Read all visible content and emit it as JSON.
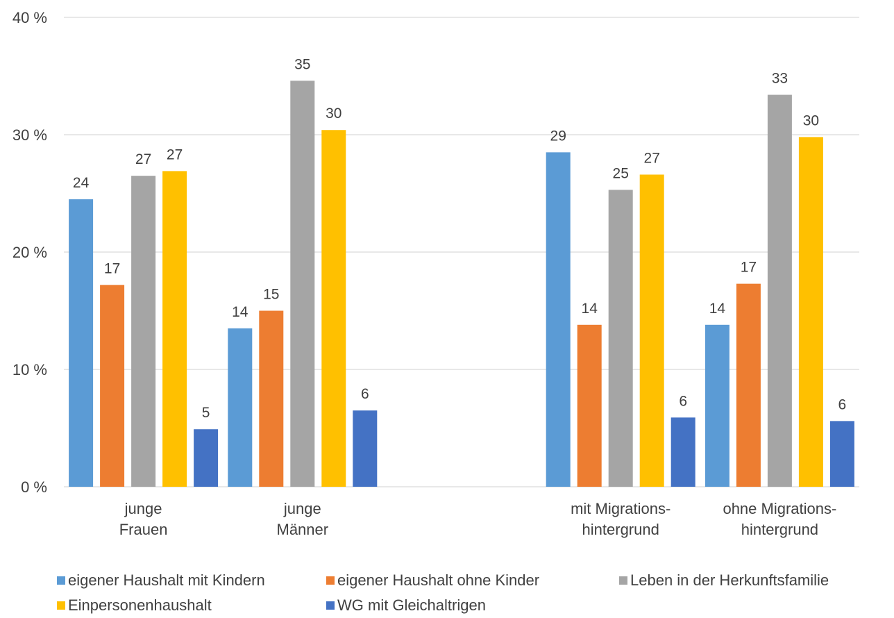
{
  "chart_data": {
    "type": "bar",
    "categories": [
      [
        "junge",
        "Frauen"
      ],
      [
        "junge",
        "Männer"
      ],
      [
        "",
        ""
      ],
      [
        "mit Migrations-",
        "hintergrund"
      ],
      [
        "ohne Migrations-",
        "hintergrund"
      ]
    ],
    "y_ticks": [
      "0 %",
      "10 %",
      "20 %",
      "30 %",
      "40 %"
    ],
    "ylim": [
      0,
      40
    ],
    "grid": true,
    "legend_position": "bottom",
    "series": [
      {
        "name": "eigener Haushalt mit Kindern",
        "color": "#5B9BD5",
        "values": [
          24.5,
          13.5,
          null,
          28.5,
          13.8
        ],
        "labels": [
          "24",
          "14",
          "",
          "29",
          "14"
        ]
      },
      {
        "name": "eigener Haushalt ohne Kinder",
        "color": "#ED7D31",
        "values": [
          17.2,
          15.0,
          null,
          13.8,
          17.3
        ],
        "labels": [
          "17",
          "15",
          "",
          "14",
          "17"
        ]
      },
      {
        "name": "Leben in der Herkunftsfamilie",
        "color": "#A5A5A5",
        "values": [
          26.5,
          34.6,
          null,
          25.3,
          33.4
        ],
        "labels": [
          "27",
          "35",
          "",
          "25",
          "33"
        ]
      },
      {
        "name": "Einpersonenhaushalt",
        "color": "#FFC000",
        "values": [
          26.9,
          30.4,
          null,
          26.6,
          29.8
        ],
        "labels": [
          "27",
          "30",
          "",
          "27",
          "30"
        ]
      },
      {
        "name": "WG mit Gleichaltrigen",
        "color": "#4472C4",
        "values": [
          4.9,
          6.5,
          null,
          5.9,
          5.6
        ],
        "labels": [
          "5",
          "6",
          "",
          "6",
          "6"
        ]
      }
    ]
  }
}
